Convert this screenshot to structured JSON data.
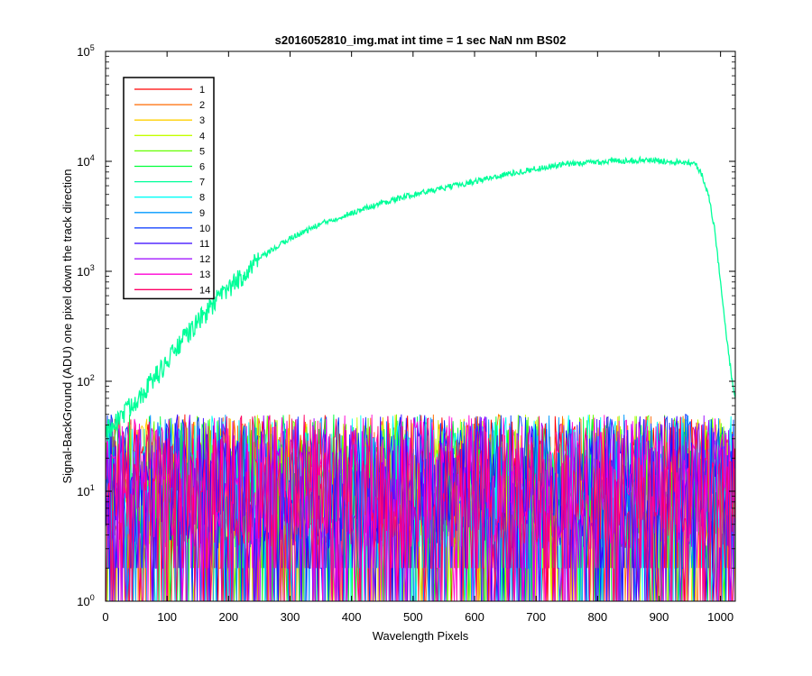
{
  "chart_data": {
    "type": "line",
    "title": "s2016052810_img.mat int time = 1 sec  NaN nm BS02",
    "xlabel": "Wavelength Pixels",
    "ylabel": "Signal-BackGround (ADU) one pixel down the track direction",
    "xlim": [
      0,
      1024
    ],
    "ylim": [
      1,
      100000
    ],
    "yscale": "log",
    "grid": false,
    "legend_position": "top-left",
    "x_ticks": [
      0,
      100,
      200,
      300,
      400,
      500,
      600,
      700,
      800,
      900,
      1000
    ],
    "y_ticks": [
      {
        "base": "10",
        "exp": "0",
        "value": 1
      },
      {
        "base": "10",
        "exp": "1",
        "value": 10
      },
      {
        "base": "10",
        "exp": "2",
        "value": 100
      },
      {
        "base": "10",
        "exp": "3",
        "value": 1000
      },
      {
        "base": "10",
        "exp": "4",
        "value": 10000
      },
      {
        "base": "10",
        "exp": "5",
        "value": 100000
      }
    ],
    "series": [
      {
        "name": "1",
        "color": "#ff0000",
        "profile": "noise",
        "noise_range": [
          1,
          50
        ]
      },
      {
        "name": "2",
        "color": "#ff6a00",
        "profile": "noise",
        "noise_range": [
          1,
          50
        ]
      },
      {
        "name": "3",
        "color": "#ffd000",
        "profile": "noise",
        "noise_range": [
          1,
          50
        ]
      },
      {
        "name": "4",
        "color": "#c4ff00",
        "profile": "noise",
        "noise_range": [
          1,
          50
        ]
      },
      {
        "name": "5",
        "color": "#66ff00",
        "profile": "noise",
        "noise_range": [
          1,
          50
        ]
      },
      {
        "name": "6",
        "color": "#00ff3a",
        "profile": "noise",
        "noise_range": [
          1,
          50
        ]
      },
      {
        "name": "7",
        "color": "#00ff99",
        "profile": "signal",
        "x": [
          0,
          20,
          40,
          60,
          80,
          100,
          120,
          150,
          180,
          200,
          250,
          300,
          350,
          400,
          450,
          500,
          550,
          600,
          650,
          700,
          750,
          800,
          850,
          880,
          900,
          920,
          950,
          960,
          970,
          980,
          990,
          1000,
          1010,
          1020,
          1024
        ],
        "y": [
          35,
          45,
          60,
          80,
          110,
          150,
          220,
          350,
          550,
          700,
          1300,
          2000,
          2700,
          3400,
          4200,
          5000,
          5700,
          6600,
          7600,
          8600,
          9400,
          9900,
          10200,
          10300,
          10100,
          10000,
          9800,
          9300,
          7500,
          5000,
          2500,
          800,
          250,
          90,
          70
        ]
      },
      {
        "name": "8",
        "color": "#00fff7",
        "profile": "noise",
        "noise_range": [
          1,
          50
        ]
      },
      {
        "name": "9",
        "color": "#0099ff",
        "profile": "noise",
        "noise_range": [
          1,
          50
        ]
      },
      {
        "name": "10",
        "color": "#0033ff",
        "profile": "noise",
        "noise_range": [
          1,
          50
        ]
      },
      {
        "name": "11",
        "color": "#3300ff",
        "profile": "noise",
        "noise_range": [
          1,
          50
        ]
      },
      {
        "name": "12",
        "color": "#9900ff",
        "profile": "noise",
        "noise_range": [
          1,
          50
        ]
      },
      {
        "name": "13",
        "color": "#ff00d4",
        "profile": "noise",
        "noise_range": [
          1,
          50
        ]
      },
      {
        "name": "14",
        "color": "#ff0066",
        "profile": "noise",
        "noise_range": [
          1,
          50
        ]
      }
    ]
  }
}
